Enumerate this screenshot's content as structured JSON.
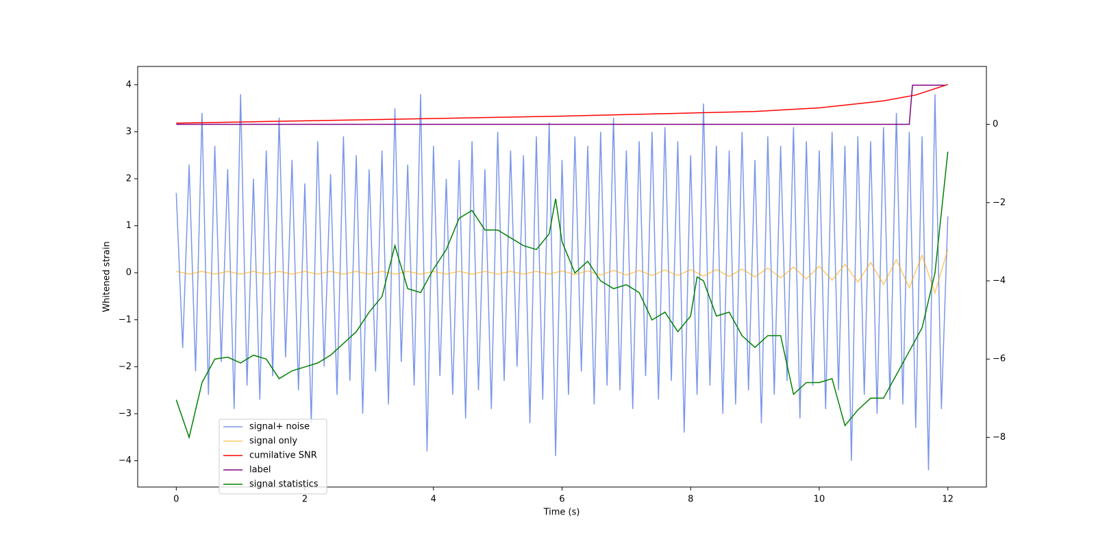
{
  "chart_data": {
    "type": "line",
    "xlabel": "Time (s)",
    "ylabel": "Whitened strain",
    "xlim": [
      -0.6,
      12.6
    ],
    "xticks": [
      0,
      2,
      4,
      6,
      8,
      10,
      12
    ],
    "ylim": [
      -4.56,
      4.39
    ],
    "yticks": [
      {
        "value": -4,
        "label": "−4"
      },
      {
        "value": -3,
        "label": "−3"
      },
      {
        "value": -2,
        "label": "−2"
      },
      {
        "value": -1,
        "label": "−1"
      },
      0,
      1,
      2,
      3,
      4
    ],
    "y2lim": [
      -9.27,
      1.48
    ],
    "y2ticks": [
      {
        "value": -8,
        "label": "−8"
      },
      {
        "value": -6,
        "label": "−6"
      },
      {
        "value": -4,
        "label": "−4"
      },
      {
        "value": -2,
        "label": "−2"
      },
      0
    ],
    "series": [
      {
        "name": "signal+ noise",
        "color": "#4169e1",
        "opacity": 0.7,
        "x": [
          0,
          0.1,
          0.2,
          0.3,
          0.4,
          0.5,
          0.6,
          0.7,
          0.8,
          0.9,
          1,
          1.1,
          1.2,
          1.3,
          1.4,
          1.5,
          1.6,
          1.7,
          1.8,
          1.9,
          2,
          2.1,
          2.2,
          2.3,
          2.4,
          2.5,
          2.6,
          2.7,
          2.8,
          2.9,
          3,
          3.1,
          3.2,
          3.3,
          3.4,
          3.5,
          3.6,
          3.7,
          3.8,
          3.9,
          4,
          4.1,
          4.2,
          4.3,
          4.4,
          4.5,
          4.6,
          4.7,
          4.8,
          4.9,
          5,
          5.1,
          5.2,
          5.3,
          5.4,
          5.5,
          5.6,
          5.7,
          5.8,
          5.9,
          6,
          6.1,
          6.2,
          6.3,
          6.4,
          6.5,
          6.6,
          6.7,
          6.8,
          6.9,
          7,
          7.1,
          7.2,
          7.3,
          7.4,
          7.5,
          7.6,
          7.7,
          7.8,
          7.9,
          8,
          8.1,
          8.2,
          8.3,
          8.4,
          8.5,
          8.6,
          8.7,
          8.8,
          8.9,
          9,
          9.1,
          9.2,
          9.3,
          9.4,
          9.5,
          9.6,
          9.7,
          9.8,
          9.9,
          10,
          10.1,
          10.2,
          10.3,
          10.4,
          10.5,
          10.6,
          10.7,
          10.8,
          10.9,
          11,
          11.1,
          11.2,
          11.3,
          11.4,
          11.5,
          11.6,
          11.7,
          11.8,
          11.9,
          12
        ],
        "values": [
          1.7,
          -1.6,
          2.3,
          -2.1,
          3.4,
          -2.6,
          2.7,
          -1.9,
          2.2,
          -2.9,
          3.8,
          -2.4,
          2.0,
          -2.7,
          2.6,
          -2.2,
          3.3,
          -1.8,
          2.4,
          -2.5,
          1.9,
          -3.2,
          2.8,
          -2.0,
          2.1,
          -2.6,
          2.9,
          -2.3,
          2.5,
          -3.0,
          2.2,
          -2.1,
          2.6,
          -2.8,
          3.5,
          -1.9,
          2.3,
          -2.4,
          3.8,
          -3.8,
          2.7,
          -2.2,
          2.0,
          -2.6,
          2.4,
          -3.1,
          2.8,
          -2.5,
          2.2,
          -2.9,
          3.0,
          -2.3,
          2.6,
          -2.0,
          2.5,
          -3.2,
          2.9,
          -2.7,
          3.2,
          -3.9,
          2.4,
          -2.6,
          2.9,
          -2.1,
          2.7,
          -2.8,
          3.0,
          -2.4,
          3.3,
          -2.5,
          2.6,
          -2.9,
          2.8,
          -2.2,
          3.0,
          -2.7,
          3.1,
          -2.3,
          2.8,
          -3.4,
          2.5,
          -2.6,
          3.6,
          -2.4,
          2.7,
          -3.0,
          2.6,
          -2.8,
          3.0,
          -2.5,
          2.4,
          -3.2,
          2.9,
          -2.6,
          2.7,
          -2.3,
          3.1,
          -3.1,
          2.8,
          -2.4,
          2.6,
          -2.9,
          3.0,
          -2.5,
          2.7,
          -4.0,
          2.9,
          -2.6,
          2.8,
          -3.0,
          3.1,
          -2.7,
          3.4,
          -2.8,
          3.0,
          -3.3,
          2.9,
          -4.2,
          3.8,
          -2.9,
          1.2
        ]
      },
      {
        "name": "signal only",
        "color": "#ffa500",
        "opacity": 0.6,
        "x": [
          0,
          0.2,
          0.4,
          0.6,
          0.8,
          1,
          1.2,
          1.4,
          1.6,
          1.8,
          2,
          2.2,
          2.4,
          2.6,
          2.8,
          3,
          3.2,
          3.4,
          3.6,
          3.8,
          4,
          4.2,
          4.4,
          4.6,
          4.8,
          5,
          5.2,
          5.4,
          5.6,
          5.8,
          6,
          6.2,
          6.4,
          6.6,
          6.8,
          7,
          7.2,
          7.4,
          7.6,
          7.8,
          8,
          8.2,
          8.4,
          8.6,
          8.8,
          9,
          9.2,
          9.4,
          9.6,
          9.8,
          10,
          10.2,
          10.4,
          10.6,
          10.8,
          11,
          11.2,
          11.4,
          11.6,
          11.8,
          12
        ],
        "values": [
          0.03,
          -0.03,
          0.03,
          -0.03,
          0.03,
          -0.03,
          0.03,
          -0.03,
          0.03,
          -0.03,
          0.03,
          -0.03,
          0.03,
          -0.03,
          0.03,
          -0.03,
          0.03,
          -0.03,
          0.03,
          -0.03,
          0.03,
          -0.03,
          0.03,
          -0.03,
          0.03,
          -0.03,
          0.03,
          -0.03,
          0.03,
          -0.03,
          0.04,
          -0.04,
          0.04,
          -0.05,
          0.05,
          -0.05,
          0.05,
          -0.06,
          0.06,
          -0.06,
          0.07,
          -0.07,
          0.07,
          -0.08,
          0.08,
          -0.09,
          0.1,
          -0.11,
          0.12,
          -0.13,
          0.14,
          -0.16,
          0.18,
          -0.2,
          0.22,
          -0.25,
          0.28,
          -0.32,
          0.37,
          -0.43,
          0.5
        ]
      },
      {
        "name": "cumilative SNR",
        "color": "#ff0000",
        "axis": "y2",
        "x": [
          0,
          1,
          2,
          3,
          4,
          5,
          6,
          7,
          8,
          9,
          10,
          11,
          11.5,
          12
        ],
        "values": [
          0.03,
          0.06,
          0.09,
          0.12,
          0.15,
          0.18,
          0.21,
          0.25,
          0.29,
          0.33,
          0.42,
          0.6,
          0.75,
          1.02
        ]
      },
      {
        "name": "label",
        "color": "#800080",
        "axis": "y2",
        "x": [
          0,
          11.4,
          11.45,
          11.95
        ],
        "values": [
          0,
          0,
          1,
          1
        ]
      },
      {
        "name": "signal statistics",
        "color": "#008000",
        "axis": "y2",
        "x": [
          0,
          0.2,
          0.4,
          0.6,
          0.8,
          1,
          1.2,
          1.4,
          1.6,
          1.8,
          2,
          2.2,
          2.4,
          2.6,
          2.8,
          3,
          3.2,
          3.4,
          3.6,
          3.8,
          4,
          4.2,
          4.4,
          4.6,
          4.8,
          5,
          5.2,
          5.4,
          5.6,
          5.8,
          5.9,
          6,
          6.2,
          6.4,
          6.6,
          6.8,
          7,
          7.2,
          7.4,
          7.6,
          7.8,
          8,
          8.1,
          8.2,
          8.4,
          8.6,
          8.8,
          9,
          9.2,
          9.4,
          9.6,
          9.8,
          10,
          10.2,
          10.4,
          10.6,
          10.8,
          11,
          11.2,
          11.4,
          11.6,
          11.8,
          12
        ],
        "values": [
          -7.04,
          -8.0,
          -6.6,
          -6.0,
          -5.95,
          -6.1,
          -5.9,
          -6.0,
          -6.5,
          -6.3,
          -6.2,
          -6.1,
          -5.9,
          -5.6,
          -5.3,
          -4.8,
          -4.4,
          -3.1,
          -4.2,
          -4.3,
          -3.7,
          -3.2,
          -2.4,
          -2.2,
          -2.7,
          -2.7,
          -2.9,
          -3.1,
          -3.2,
          -2.8,
          -1.9,
          -3.0,
          -3.8,
          -3.5,
          -4.0,
          -4.2,
          -4.1,
          -4.3,
          -5.0,
          -4.8,
          -5.3,
          -4.9,
          -3.9,
          -4.0,
          -4.9,
          -4.8,
          -5.4,
          -5.7,
          -5.4,
          -5.4,
          -6.9,
          -6.6,
          -6.6,
          -6.5,
          -7.7,
          -7.3,
          -7.0,
          -7.0,
          -6.4,
          -5.8,
          -5.2,
          -3.8,
          -0.7
        ]
      }
    ]
  }
}
